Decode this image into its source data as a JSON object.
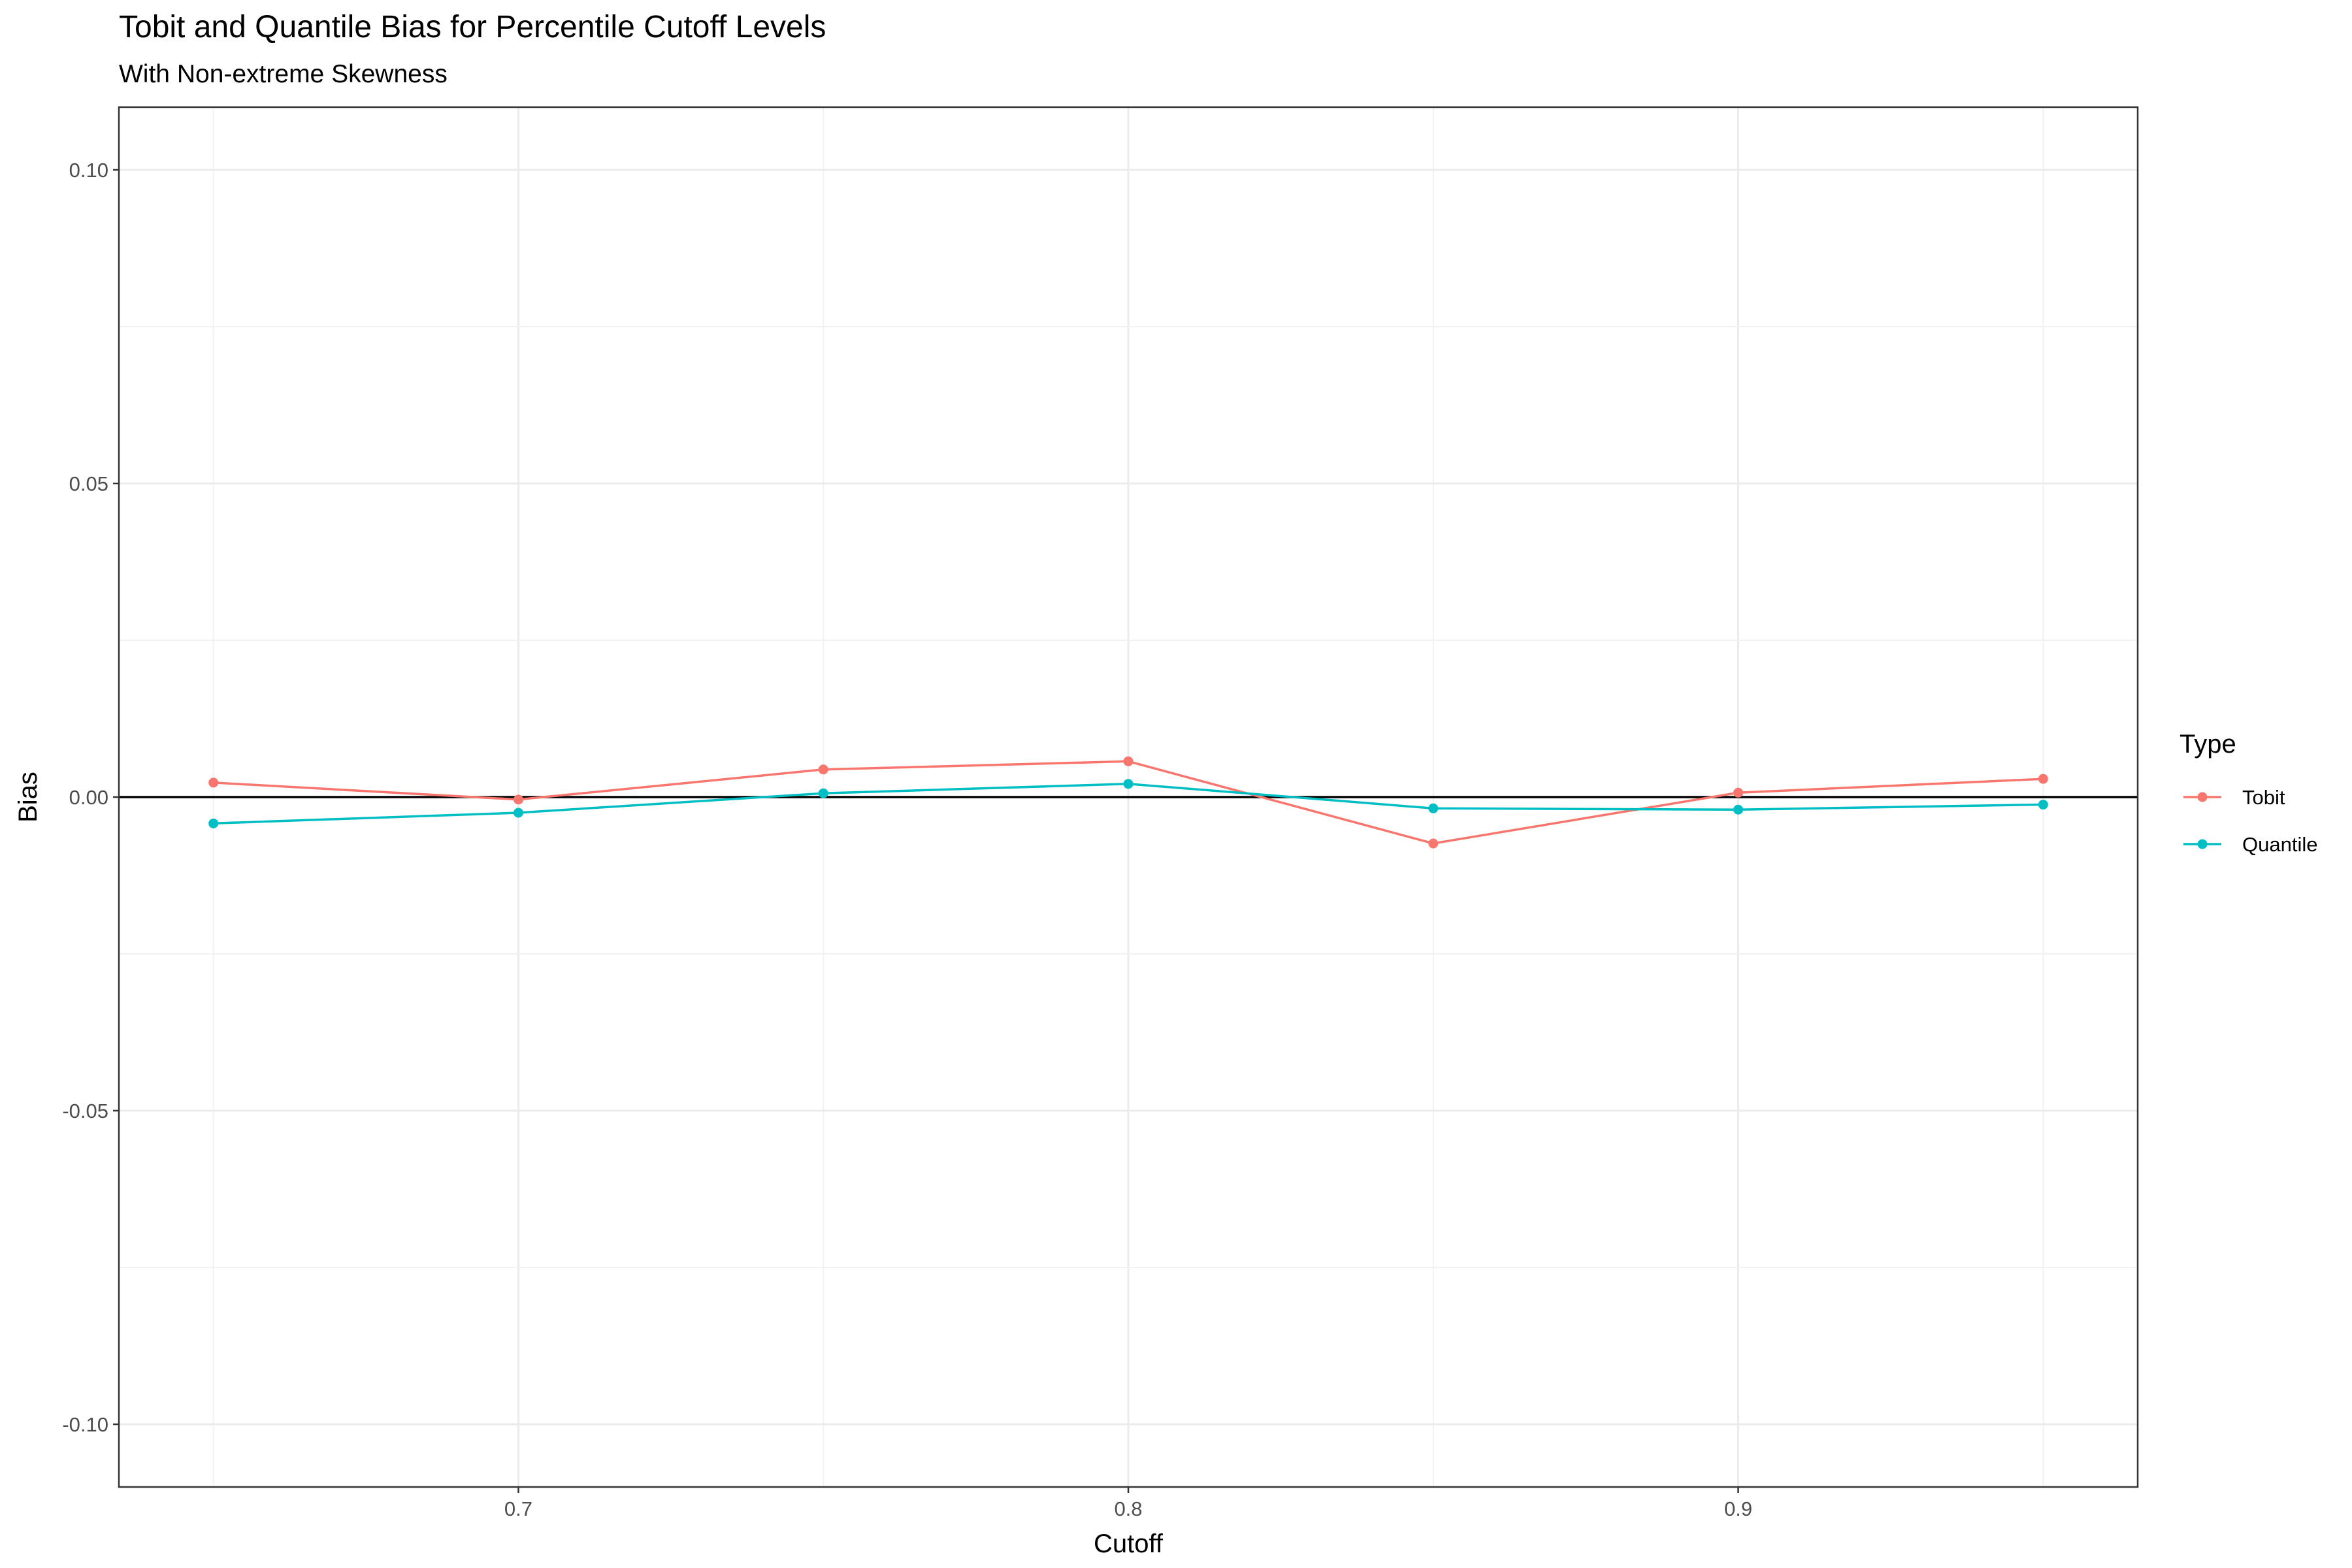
{
  "chart_data": {
    "type": "line",
    "title": "Tobit and Quantile Bias for Percentile Cutoff Levels",
    "subtitle": "With Non-extreme Skewness",
    "xlabel": "Cutoff",
    "ylabel": "Bias",
    "x": [
      0.65,
      0.7,
      0.75,
      0.8,
      0.85,
      0.9,
      0.95
    ],
    "xlim": [
      0.6345,
      0.9655
    ],
    "ylim": [
      -0.11,
      0.11
    ],
    "x_ticks": [
      0.7,
      0.8,
      0.9
    ],
    "x_tick_labels": [
      "0.7",
      "0.8",
      "0.9"
    ],
    "y_ticks": [
      -0.1,
      -0.05,
      0.0,
      0.05,
      0.1
    ],
    "y_tick_labels": [
      "-0.10",
      "-0.05",
      "0.00",
      "0.05",
      "0.10"
    ],
    "reference_line": {
      "y": 0.0,
      "color": "#000000"
    },
    "grid": true,
    "legend_title": "Type",
    "legend_position": "right",
    "series": [
      {
        "name": "Tobit",
        "color": "#F8766D",
        "values": [
          0.0023,
          -0.0004,
          0.0044,
          0.0057,
          -0.0074,
          0.0007,
          0.0029
        ]
      },
      {
        "name": "Quantile",
        "color": "#00BFC4",
        "values": [
          -0.0042,
          -0.0025,
          0.0006,
          0.0021,
          -0.0018,
          -0.002,
          -0.0012
        ]
      }
    ]
  }
}
